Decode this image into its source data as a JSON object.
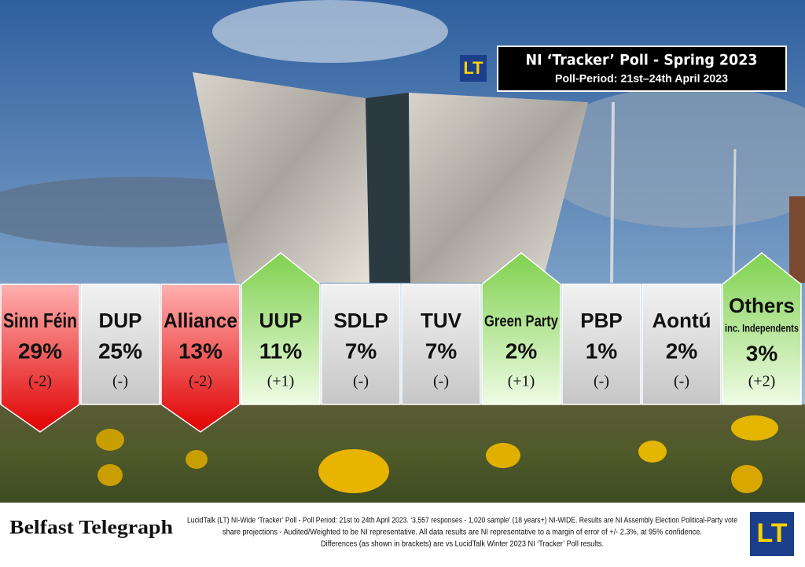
{
  "header": {
    "logo": "LT",
    "title": "NI ‘Tracker’ Poll - Spring 2023",
    "subtitle": "Poll-Period: 21st–24th April 2023"
  },
  "parties": [
    {
      "name": "Sinn Féin",
      "share": "29%",
      "change": "(-2)"
    },
    {
      "name": "DUP",
      "share": "25%",
      "change": "(-)"
    },
    {
      "name": "Alliance",
      "share": "13%",
      "change": "(-2)"
    },
    {
      "name": "UUP",
      "share": "11%",
      "change": "(+1)"
    },
    {
      "name": "SDLP",
      "share": "7%",
      "change": "(-)"
    },
    {
      "name": "TUV",
      "share": "7%",
      "change": "(-)"
    },
    {
      "name": "Green Party",
      "share": "2%",
      "change": "(+1)"
    },
    {
      "name": "PBP",
      "share": "1%",
      "change": "(-)"
    },
    {
      "name": "Aontú",
      "share": "2%",
      "change": "(-)"
    },
    {
      "name": "Others",
      "note": "inc. Independents",
      "share": "3%",
      "change": "(+2)"
    }
  ],
  "footer": {
    "brand": "Belfast Telegraph",
    "logo": "LT",
    "notes": [
      "LucidTalk (LT) NI-Wide ‘Tracker’ Poll - Poll Period: 21st to 24th April 2023.  ‘3,557 responses - 1,020 sample’ (18 years+) NI-WIDE. Results are NI Assembly Election Political-Party vote",
      "share projections - Audited/Weighted to be NI representative.  All data results are NI representative to a margin of error of +/- 2.3%, at 95% confidence.",
      "Differences (as shown in brackets) are vs LucidTalk Winter 2023 NI ‘Tracker’ Poll results."
    ]
  }
}
